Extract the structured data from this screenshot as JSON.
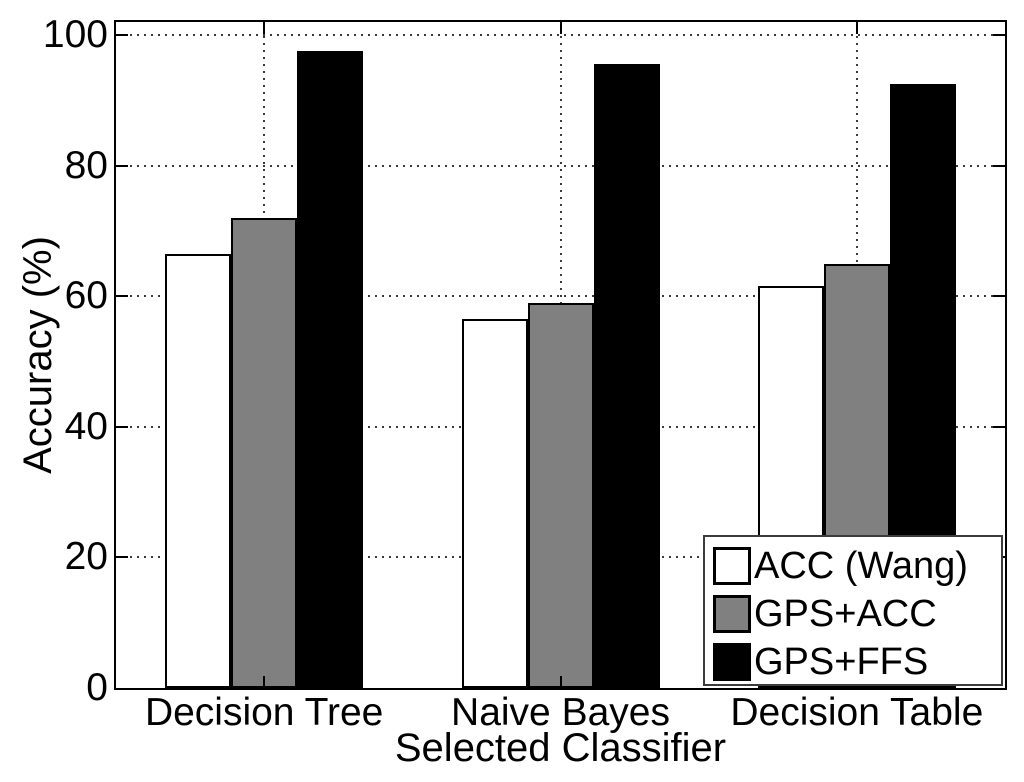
{
  "chart_data": {
    "type": "bar",
    "title": "",
    "xlabel": "Selected Classifier",
    "ylabel": "Accuracy (%)",
    "categories": [
      "Decision Tree",
      "Naive Bayes",
      "Decision Table"
    ],
    "series": [
      {
        "name": "ACC (Wang)",
        "color": "#ffffff",
        "values": [
          66.5,
          56.5,
          61.5
        ]
      },
      {
        "name": "GPS+ACC",
        "color": "#808080",
        "values": [
          72,
          59,
          65
        ]
      },
      {
        "name": "GPS+FFS",
        "color": "#000000",
        "values": [
          97.5,
          95.5,
          92.5
        ]
      }
    ],
    "yticks": [
      0,
      20,
      40,
      60,
      80,
      100
    ],
    "ylim": [
      0,
      102
    ],
    "grid": "dotted",
    "legend_position": "bottom-right-inside",
    "bar_edge_color": "#000000",
    "axis_color": "#000000"
  }
}
